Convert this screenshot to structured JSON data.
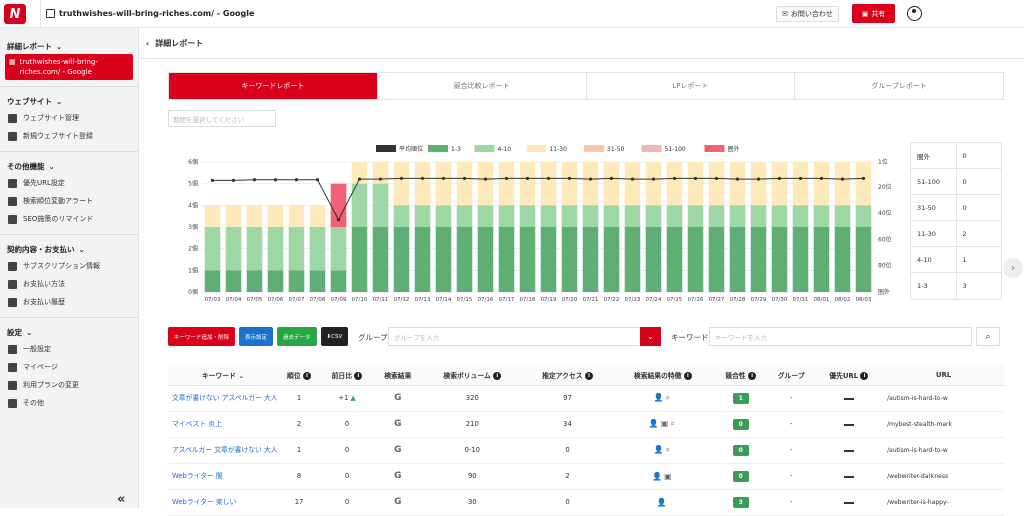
{
  "topbar": {
    "site": "truthwishes-will-bring-riches.com/ - Google",
    "contact": "お問い合わせ",
    "share": "共有"
  },
  "sidebar": {
    "report_head": "詳細レポート",
    "active_site": "truthwishes-will-bring-riches.com/ - Google",
    "website_head": "ウェブサイト",
    "website_items": [
      "ウェブサイト管理",
      "新規ウェブサイト登録"
    ],
    "other_head": "その他機能",
    "other_items": [
      "優先URL設定",
      "検索順位変動アラート",
      "SEO施策のリマインド"
    ],
    "contract_head": "契約内容・お支払い",
    "contract_items": [
      "サブスクリプション情報",
      "お支払い方法",
      "お支払い履歴"
    ],
    "settings_head": "設定",
    "settings_items": [
      "一般設定",
      "マイページ",
      "利用プランの変更",
      "その他"
    ]
  },
  "page": {
    "title": "詳細レポート"
  },
  "tabs": [
    "キーワードレポート",
    "競合比較レポート",
    "LPレポート",
    "グループレポート"
  ],
  "date_placeholder": "期間を選択してください",
  "legend": [
    "平均順位",
    "1-3",
    "4-10",
    "11-30",
    "31-50",
    "51-100",
    "圏外"
  ],
  "colors": {
    "c1_3": "#5fae73",
    "c4_10": "#9ed6a6",
    "c11_30": "#fde9b9",
    "c31_50": "#f6c9a9",
    "c51_100": "#f5b5b5",
    "out": "#f06077",
    "avg": "#333333",
    "accent": "#d9001b"
  },
  "chart_data": {
    "type": "bar",
    "categories": [
      "07/03",
      "07/04",
      "07/05",
      "07/06",
      "07/07",
      "07/08",
      "07/09",
      "07/10",
      "07/11",
      "07/12",
      "07/13",
      "07/14",
      "07/15",
      "07/16",
      "07/17",
      "07/18",
      "07/19",
      "07/20",
      "07/21",
      "07/22",
      "07/23",
      "07/24",
      "07/25",
      "07/26",
      "07/27",
      "07/28",
      "07/29",
      "07/30",
      "07/31",
      "08/01",
      "08/02",
      "08/03"
    ],
    "left_ticks": [
      "6個",
      "5個",
      "4個",
      "3個",
      "2個",
      "1個",
      "0個"
    ],
    "right_ticks": [
      "1位",
      "20位",
      "40位",
      "60位",
      "80位",
      "圏外"
    ],
    "series": [
      {
        "name": "1-3",
        "values": [
          1,
          1,
          1,
          1,
          1,
          1,
          1,
          3,
          3,
          3,
          3,
          3,
          3,
          3,
          3,
          3,
          3,
          3,
          3,
          3,
          3,
          3,
          3,
          3,
          3,
          3,
          3,
          3,
          3,
          3,
          3,
          3
        ]
      },
      {
        "name": "4-10",
        "values": [
          2,
          2,
          2,
          2,
          2,
          2,
          2,
          2,
          2,
          1,
          1,
          1,
          1,
          1,
          1,
          1,
          1,
          1,
          1,
          1,
          1,
          1,
          1,
          1,
          1,
          1,
          1,
          1,
          1,
          1,
          1,
          1
        ]
      },
      {
        "name": "11-30",
        "values": [
          1,
          1,
          1,
          1,
          1,
          1,
          0,
          1,
          1,
          2,
          2,
          2,
          2,
          2,
          2,
          2,
          2,
          2,
          2,
          2,
          2,
          2,
          2,
          2,
          2,
          2,
          2,
          2,
          2,
          2,
          2,
          2
        ]
      },
      {
        "name": "31-50",
        "values": [
          0,
          0,
          0,
          0,
          0,
          0,
          0,
          0,
          0,
          0,
          0,
          0,
          0,
          0,
          0,
          0,
          0,
          0,
          0,
          0,
          0,
          0,
          0,
          0,
          0,
          0,
          0,
          0,
          0,
          0,
          0,
          0
        ]
      },
      {
        "name": "51-100",
        "values": [
          0,
          0,
          0,
          0,
          0,
          0,
          0,
          0,
          0,
          0,
          0,
          0,
          0,
          0,
          0,
          0,
          0,
          0,
          0,
          0,
          0,
          0,
          0,
          0,
          0,
          0,
          0,
          0,
          0,
          0,
          0,
          0
        ]
      },
      {
        "name": "圏外",
        "values": [
          0,
          0,
          0,
          0,
          0,
          0,
          2,
          0,
          0,
          0,
          0,
          0,
          0,
          0,
          0,
          0,
          0,
          0,
          0,
          0,
          0,
          0,
          0,
          0,
          0,
          0,
          0,
          0,
          0,
          0,
          0,
          0
        ]
      }
    ],
    "avg_rank": [
      15,
      15,
      14.5,
      14.5,
      14.5,
      14.5,
      45,
      14,
      14,
      13.5,
      13.5,
      13.5,
      13.5,
      14,
      13.5,
      13.5,
      13.5,
      13.5,
      14,
      13.5,
      14,
      14,
      13.5,
      13.5,
      13.5,
      14,
      14,
      13.5,
      13.5,
      13.5,
      14,
      13.5
    ],
    "ylim": [
      0,
      6
    ],
    "rank_lim": [
      1,
      100
    ]
  },
  "rank_table": [
    {
      "label": "圏外",
      "value": "0"
    },
    {
      "label": "51-100",
      "value": "0"
    },
    {
      "label": "31-50",
      "value": "0"
    },
    {
      "label": "11-30",
      "value": "2"
    },
    {
      "label": "4-10",
      "value": "1"
    },
    {
      "label": "1-3",
      "value": "3"
    }
  ],
  "buttons": {
    "add": "キーワード追加・削除",
    "display": "表示設定",
    "past": "過去データ",
    "csv": "CSV"
  },
  "group": {
    "label": "グループ",
    "placeholder": "グループを入力"
  },
  "keyword": {
    "label": "キーワード",
    "placeholder": "キーワードを入力"
  },
  "table": {
    "headers": [
      "キーワード",
      "順位",
      "前日比",
      "検索結果",
      "検索ボリューム",
      "推定アクセス",
      "検索結果の特徴",
      "競合性",
      "グループ",
      "優先URL",
      "URL"
    ],
    "rows": [
      {
        "kw": "文章が書けない アスペルガー 大人",
        "rank": "1",
        "diff": "+1",
        "vol": "320",
        "access": "97",
        "feat": "person,search",
        "comp": "1",
        "group": "-",
        "url": "/autism-is-hard-to-w"
      },
      {
        "kw": "マイベスト 炎上",
        "rank": "2",
        "diff": "0",
        "vol": "210",
        "access": "34",
        "feat": "person,image,search",
        "comp": "0",
        "group": "-",
        "url": "/mybest-stealth-mark"
      },
      {
        "kw": "アスペルガー 文章が書けない 大人",
        "rank": "1",
        "diff": "0",
        "vol": "0-10",
        "access": "0",
        "feat": "person,search",
        "comp": "0",
        "group": "-",
        "url": "/autism-is-hard-to-w"
      },
      {
        "kw": "Webライター 闇",
        "rank": "8",
        "diff": "0",
        "vol": "90",
        "access": "2",
        "feat": "person,image",
        "comp": "0",
        "group": "-",
        "url": "/webwriter-darkness"
      },
      {
        "kw": "Webライター 楽しい",
        "rank": "17",
        "diff": "0",
        "vol": "30",
        "access": "0",
        "feat": "person",
        "comp": "3",
        "group": "-",
        "url": "/webwriter-is-happy-"
      }
    ]
  }
}
